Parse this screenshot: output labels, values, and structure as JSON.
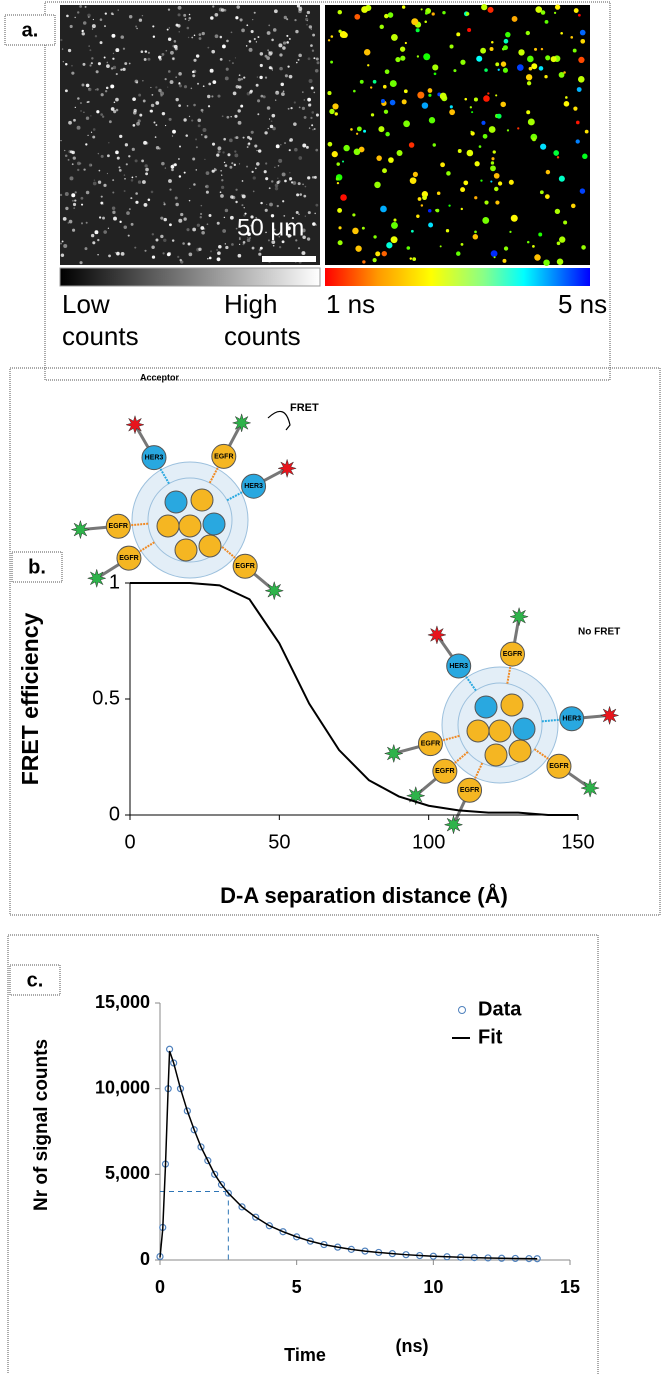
{
  "panel_labels": [
    "a.",
    "b.",
    "c."
  ],
  "panel_a": {
    "scale_bar": "50 μm",
    "left_colorbar": [
      "Low counts",
      "High counts"
    ],
    "right_colorbar": [
      "1 ns",
      "5 ns"
    ]
  },
  "panel_b_schematic": {
    "acceptor": "Acceptor",
    "fret": "FRET",
    "no_fret": "No FRET",
    "receptors": [
      "HER3",
      "EGFR"
    ]
  },
  "chart_data": [
    {
      "type": "line",
      "xlabel": "D-A separation distance (Å)",
      "ylabel": "FRET efficiency",
      "x": [
        0,
        10,
        20,
        30,
        40,
        50,
        60,
        70,
        80,
        90,
        100,
        110,
        120,
        130,
        140,
        150
      ],
      "values": [
        1,
        1,
        1,
        0.99,
        0.93,
        0.74,
        0.48,
        0.28,
        0.15,
        0.08,
        0.04,
        0.02,
        0.01,
        0.01,
        0,
        0
      ],
      "color": "#000000",
      "xlim": [
        0,
        150
      ],
      "ylim": [
        0,
        1
      ],
      "xticks": [
        0,
        50,
        100,
        150
      ],
      "yticks": [
        0,
        0.5,
        1
      ]
    },
    {
      "type": "line",
      "xlabel": "Time",
      "xlabel_unit": "(ns)",
      "ylabel": "Nr of signal counts",
      "x": [
        0,
        0.1,
        0.2,
        0.3,
        0.35,
        0.5,
        0.75,
        1,
        1.25,
        1.5,
        1.75,
        2,
        2.25,
        2.5,
        3,
        3.5,
        4,
        4.5,
        5,
        5.5,
        6,
        6.5,
        7,
        7.5,
        8,
        8.5,
        9,
        9.5,
        10,
        10.5,
        11,
        11.5,
        12,
        12.5,
        13,
        13.5,
        13.8
      ],
      "series": [
        {
          "name": "Data",
          "mode": "markers",
          "color": "#4f81bd",
          "values": [
            200,
            1900,
            5600,
            10000,
            12300,
            11500,
            10000,
            8700,
            7600,
            6600,
            5800,
            5000,
            4400,
            3900,
            3100,
            2500,
            2000,
            1650,
            1350,
            1100,
            900,
            750,
            620,
            520,
            440,
            370,
            310,
            260,
            220,
            190,
            160,
            140,
            120,
            100,
            90,
            80,
            75
          ]
        },
        {
          "name": "Fit",
          "mode": "line",
          "color": "#000000",
          "values": [
            150,
            1800,
            5500,
            10100,
            12200,
            11500,
            10000,
            8700,
            7600,
            6600,
            5800,
            5000,
            4400,
            3900,
            3100,
            2500,
            2000,
            1650,
            1350,
            1100,
            900,
            750,
            620,
            520,
            440,
            370,
            310,
            260,
            220,
            190,
            160,
            140,
            120,
            100,
            90,
            80,
            75
          ]
        }
      ],
      "guide": {
        "x": 2.5,
        "y": 4000
      },
      "xlim": [
        0,
        15
      ],
      "ylim": [
        0,
        15000
      ],
      "xticks": [
        0,
        5,
        10,
        15
      ],
      "yticks": [
        0,
        {
          "value": 5000,
          "label": "5,000"
        },
        {
          "value": 10000,
          "label": "10,000"
        },
        {
          "value": 15000,
          "label": "15,000"
        }
      ],
      "legend": "top-right"
    }
  ]
}
